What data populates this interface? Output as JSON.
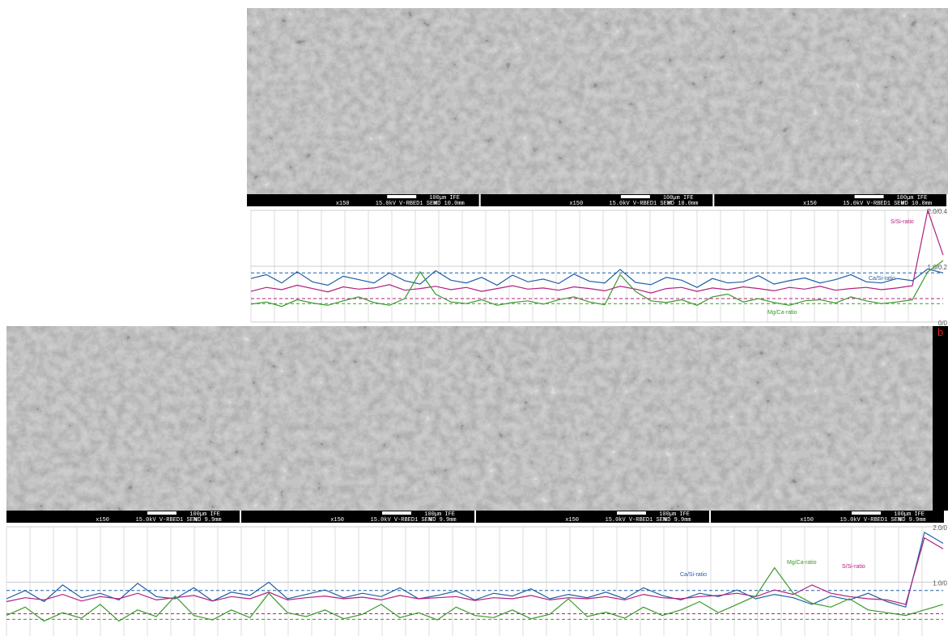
{
  "images": [
    {
      "bars": [
        {
          "mag": "x150",
          "beam": "15.0kV V-RBED1  SEM",
          "wd": "WD 10.0mm",
          "scale": "100µm IFE"
        },
        {
          "mag": "x150",
          "beam": "15.0kV V-RBED1  SEM",
          "wd": "WD 10.0mm",
          "scale": "100µm IFE"
        },
        {
          "mag": "x150",
          "beam": "15.0kV V-RBED1  SEM",
          "wd": "WD 10.0mm",
          "scale": "100µm IFE"
        }
      ]
    },
    {
      "label": "b",
      "bars": [
        {
          "mag": "x150",
          "beam": "15.0kV V-RBED1  SEM",
          "wd": "WD 9.9mm",
          "scale": "100µm IFE"
        },
        {
          "mag": "x150",
          "beam": "15.0kV V-RBED1  SEM",
          "wd": "WD 9.9mm",
          "scale": "100µm IFE"
        },
        {
          "mag": "x150",
          "beam": "15.0kV V-RBED1  SEM",
          "wd": "WD 9.9mm",
          "scale": "100µm IFE"
        },
        {
          "mag": "x150",
          "beam": "15.0kV V-RBED1  SEM",
          "wd": "WD 9.9mm",
          "scale": "100µm IFE"
        }
      ]
    }
  ],
  "chart_data": [
    {
      "type": "line",
      "ylim": [
        0,
        2
      ],
      "yticks": [
        {
          "value": 0,
          "label": "0/0"
        },
        {
          "value": 1,
          "label": "1.0/0.2"
        },
        {
          "value": 2,
          "label": "2.0/0.4"
        }
      ],
      "grid": true,
      "reference_lines": [
        {
          "value": 0.88,
          "color": "#1f5fa8"
        },
        {
          "value": 0.42,
          "color": "#b0207e"
        },
        {
          "value": 0.33,
          "color": "#3a9a2a"
        }
      ],
      "series": [
        {
          "name": "Ca/Si-ratio",
          "color": "#1f5fa8",
          "values": [
            0.78,
            0.85,
            0.7,
            0.9,
            0.72,
            0.66,
            0.82,
            0.76,
            0.7,
            0.88,
            0.74,
            0.68,
            0.92,
            0.75,
            0.7,
            0.8,
            0.66,
            0.84,
            0.72,
            0.77,
            0.69,
            0.86,
            0.73,
            0.7,
            0.94,
            0.71,
            0.67,
            0.8,
            0.75,
            0.62,
            0.78,
            0.7,
            0.72,
            0.83,
            0.68,
            0.74,
            0.79,
            0.7,
            0.76,
            0.85,
            0.72,
            0.7,
            0.78,
            0.74,
            0.95,
            0.88
          ]
        },
        {
          "name": "S/Si-ratio",
          "color": "#b0207e",
          "values": [
            0.55,
            0.62,
            0.58,
            0.66,
            0.6,
            0.54,
            0.63,
            0.59,
            0.61,
            0.67,
            0.57,
            0.6,
            0.64,
            0.58,
            0.62,
            0.55,
            0.6,
            0.65,
            0.59,
            0.61,
            0.57,
            0.63,
            0.6,
            0.56,
            0.64,
            0.59,
            0.52,
            0.6,
            0.62,
            0.55,
            0.61,
            0.58,
            0.63,
            0.6,
            0.56,
            0.62,
            0.59,
            0.64,
            0.57,
            0.6,
            0.62,
            0.58,
            0.61,
            0.65,
            2.0,
            1.2
          ]
        },
        {
          "name": "Mg/Ca-ratio",
          "color": "#3a9a2a",
          "values": [
            0.32,
            0.36,
            0.28,
            0.4,
            0.34,
            0.3,
            0.38,
            0.45,
            0.35,
            0.3,
            0.42,
            0.9,
            0.5,
            0.36,
            0.33,
            0.4,
            0.3,
            0.35,
            0.38,
            0.32,
            0.4,
            0.45,
            0.36,
            0.31,
            0.85,
            0.55,
            0.38,
            0.35,
            0.4,
            0.3,
            0.45,
            0.5,
            0.36,
            0.42,
            0.35,
            0.3,
            0.38,
            0.4,
            0.34,
            0.45,
            0.38,
            0.33,
            0.36,
            0.4,
            0.9,
            1.1
          ]
        }
      ]
    },
    {
      "type": "line",
      "ylim": [
        0,
        2
      ],
      "yticks": [
        {
          "value": 1,
          "label": "1.0/0"
        },
        {
          "value": 2,
          "label": "2.0/0"
        }
      ],
      "grid": true,
      "reference_lines": [
        {
          "value": 0.85,
          "color": "#1f5fa8"
        },
        {
          "value": 0.43,
          "color": "#b0207e"
        },
        {
          "value": 0.33,
          "color": "#3a9a2a"
        }
      ],
      "series": [
        {
          "name": "Ca/Si-ratio",
          "color": "#1f5fa8",
          "values": [
            0.7,
            0.85,
            0.65,
            0.95,
            0.72,
            0.8,
            0.68,
            0.98,
            0.74,
            0.7,
            0.9,
            0.66,
            0.82,
            0.76,
            1.0,
            0.7,
            0.78,
            0.86,
            0.72,
            0.8,
            0.74,
            0.9,
            0.7,
            0.76,
            0.84,
            0.68,
            0.8,
            0.75,
            0.88,
            0.7,
            0.78,
            0.72,
            0.82,
            0.7,
            0.9,
            0.76,
            0.68,
            0.8,
            0.74,
            0.86,
            0.7,
            0.78,
            0.72,
            0.6,
            0.75,
            0.68,
            0.8,
            0.65,
            0.55,
            1.9,
            1.7
          ]
        },
        {
          "name": "S/Si-ratio",
          "color": "#b0207e",
          "values": [
            0.65,
            0.72,
            0.68,
            0.78,
            0.66,
            0.74,
            0.7,
            0.8,
            0.68,
            0.72,
            0.76,
            0.66,
            0.74,
            0.7,
            0.82,
            0.68,
            0.72,
            0.75,
            0.7,
            0.73,
            0.68,
            0.76,
            0.7,
            0.72,
            0.74,
            0.67,
            0.72,
            0.7,
            0.76,
            0.68,
            0.72,
            0.7,
            0.74,
            0.68,
            0.78,
            0.72,
            0.7,
            0.74,
            0.76,
            0.8,
            0.74,
            0.86,
            0.78,
            0.95,
            0.8,
            0.74,
            0.7,
            0.68,
            0.6,
            1.8,
            1.6
          ]
        },
        {
          "name": "Mg/Ca-ratio",
          "color": "#3a9a2a",
          "values": [
            0.4,
            0.55,
            0.3,
            0.45,
            0.35,
            0.6,
            0.3,
            0.5,
            0.38,
            0.75,
            0.4,
            0.32,
            0.5,
            0.36,
            0.8,
            0.45,
            0.38,
            0.5,
            0.34,
            0.42,
            0.6,
            0.36,
            0.45,
            0.32,
            0.55,
            0.4,
            0.36,
            0.5,
            0.34,
            0.42,
            0.7,
            0.38,
            0.46,
            0.35,
            0.55,
            0.4,
            0.5,
            0.65,
            0.45,
            0.6,
            0.75,
            1.26,
            0.8,
            0.62,
            0.55,
            0.7,
            0.5,
            0.45,
            0.4,
            0.5,
            0.6
          ]
        }
      ]
    }
  ]
}
